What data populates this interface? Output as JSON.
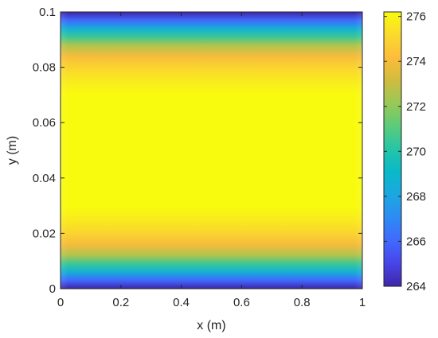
{
  "chart_data": {
    "type": "heatmap",
    "xlabel": "x (m)",
    "ylabel": "y (m)",
    "xlim": [
      0,
      1
    ],
    "ylim": [
      0,
      0.1
    ],
    "xticks": [
      0,
      0.2,
      0.4,
      0.6,
      0.8,
      1
    ],
    "xtick_labels": [
      "0",
      "0.2",
      "0.4",
      "0.6",
      "0.8",
      "1"
    ],
    "yticks": [
      0,
      0.02,
      0.04,
      0.06,
      0.08,
      0.1
    ],
    "ytick_labels": [
      "0",
      "0.02",
      "0.04",
      "0.06",
      "0.08",
      "0.1"
    ],
    "colorbar": {
      "range": [
        264,
        276.2
      ],
      "ticks": [
        264,
        266,
        268,
        270,
        272,
        274,
        276
      ],
      "tick_labels": [
        "264",
        "266",
        "268",
        "270",
        "272",
        "274",
        "276"
      ],
      "colormap": "parula"
    },
    "field": {
      "description_axis": "y",
      "y": [
        0,
        0.003,
        0.006,
        0.009,
        0.012,
        0.016,
        0.02,
        0.025,
        0.03,
        0.05,
        0.07,
        0.075,
        0.08,
        0.084,
        0.088,
        0.091,
        0.094,
        0.097,
        0.1
      ],
      "values": [
        264,
        266,
        268.5,
        270.5,
        272.5,
        274,
        275,
        275.7,
        276.2,
        276.2,
        276.2,
        275.7,
        275,
        274,
        272.5,
        270.5,
        268.5,
        266,
        264
      ]
    },
    "grid": false,
    "colors": {
      "axis": "#262626",
      "background": "#ffffff"
    }
  }
}
